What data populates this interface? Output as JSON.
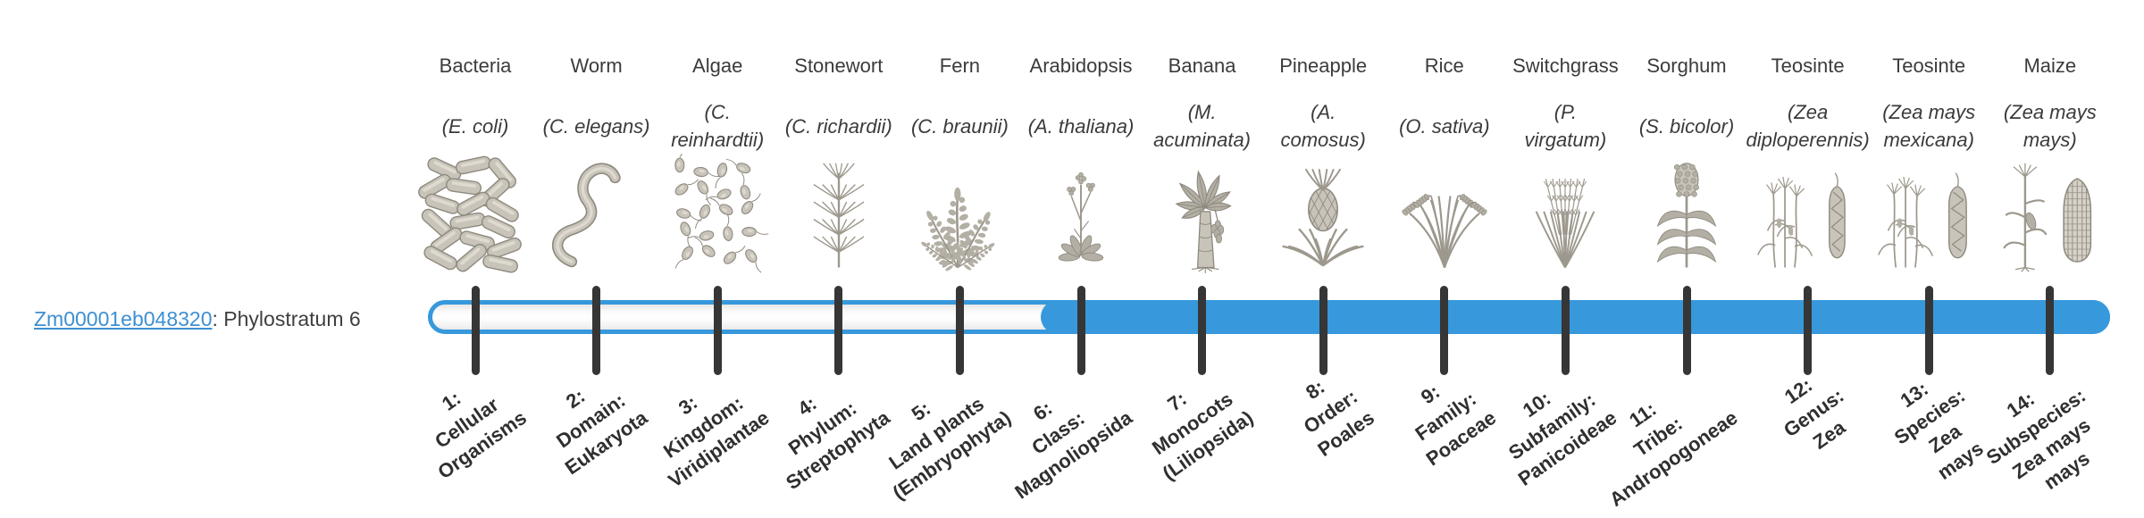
{
  "gene": {
    "id": "Zm00001eb048320",
    "suffix": ": Phylostratum 6"
  },
  "timeline": {
    "filled_from_stratum": 6,
    "total_strata": 14,
    "colors": {
      "fill_blue": "#3798dc",
      "track_fill": "#ffffff",
      "tick": "#363636",
      "link_blue": "#3d8fd1",
      "text": "#3f3f3f"
    }
  },
  "chart_data": {
    "type": "bar",
    "orientation": "horizontal",
    "title": "Zm00001eb048320: Phylostratum 6",
    "x_tick_labels": [
      "1: Cellular Organisms",
      "2: Domain: Eukaryota",
      "3: Kingdom: Viridiplantae",
      "4: Phylum: Streptophyta",
      "5: Land plants (Embryophyta)",
      "6: Class: Magnoliopsida",
      "7: Monocots (Liliopsida)",
      "8: Order: Poales",
      "9: Family: Poaceae",
      "10: Subfamily: Panicoideae",
      "11: Tribe: Andropogoneae",
      "12: Genus: Zea",
      "13: Species: Zea mays",
      "14: Subspecies: Zea mays mays"
    ],
    "top_labels": [
      "Bacteria (E. coli)",
      "Worm (C. elegans)",
      "Algae (C. reinhardtii)",
      "Stonewort (C. richardii)",
      "Fern (C. braunii)",
      "Arabidopsis (A. thaliana)",
      "Banana (M. acuminata)",
      "Pineapple (A. comosus)",
      "Rice (O. sativa)",
      "Switchgrass (P. virgatum)",
      "Sorghum (S. bicolor)",
      "Teosinte (Zea diploperennis)",
      "Teosinte (Zea mays mexicana)",
      "Maize (Zea mays mays)"
    ],
    "bar_unfilled_range_strata": [
      1,
      5
    ],
    "bar_filled_range_strata": [
      6,
      14
    ]
  },
  "strata": [
    {
      "index": 1,
      "common_name": "Bacteria",
      "sci_lines": [
        "(E. coli)"
      ],
      "axis_lines": [
        "1:",
        "Cellular",
        "Organisms"
      ],
      "icon": "bacteria"
    },
    {
      "index": 2,
      "common_name": "Worm",
      "sci_lines": [
        "(C. elegans)"
      ],
      "axis_lines": [
        "2:",
        "Domain:",
        "Eukaryota"
      ],
      "icon": "worm"
    },
    {
      "index": 3,
      "common_name": "Algae",
      "sci_lines": [
        "(C.",
        "reinhardtii)"
      ],
      "axis_lines": [
        "3:",
        "Kingdom:",
        "Viridiplantae"
      ],
      "icon": "algae"
    },
    {
      "index": 4,
      "common_name": "Stonewort",
      "sci_lines": [
        "(C. richardii)"
      ],
      "axis_lines": [
        "4:",
        "Phylum:",
        "Streptophyta"
      ],
      "icon": "stonewort"
    },
    {
      "index": 5,
      "common_name": "Fern",
      "sci_lines": [
        "(C. braunii)"
      ],
      "axis_lines": [
        "5:",
        "Land plants",
        "(Embryophyta)"
      ],
      "icon": "fern"
    },
    {
      "index": 6,
      "common_name": "Arabidopsis",
      "sci_lines": [
        "(A. thaliana)"
      ],
      "axis_lines": [
        "6:",
        "Class:",
        "Magnoliopsida"
      ],
      "icon": "arabidopsis"
    },
    {
      "index": 7,
      "common_name": "Banana",
      "sci_lines": [
        "(M.",
        "acuminata)"
      ],
      "axis_lines": [
        "7:",
        "Monocots",
        "(Liliopsida)"
      ],
      "icon": "banana"
    },
    {
      "index": 8,
      "common_name": "Pineapple",
      "sci_lines": [
        "(A.",
        "comosus)"
      ],
      "axis_lines": [
        "8:",
        "Order:",
        "Poales"
      ],
      "icon": "pineapple"
    },
    {
      "index": 9,
      "common_name": "Rice",
      "sci_lines": [
        "(O. sativa)"
      ],
      "axis_lines": [
        "9:",
        "Family:",
        "Poaceae"
      ],
      "icon": "rice"
    },
    {
      "index": 10,
      "common_name": "Switchgrass",
      "sci_lines": [
        "(P.",
        "virgatum)"
      ],
      "axis_lines": [
        "10:",
        "Subfamily:",
        "Panicoideae"
      ],
      "icon": "switchgrass"
    },
    {
      "index": 11,
      "common_name": "Sorghum",
      "sci_lines": [
        "(S. bicolor)"
      ],
      "axis_lines": [
        "11:",
        "Tribe:",
        "Andropogoneae"
      ],
      "icon": "sorghum"
    },
    {
      "index": 12,
      "common_name": "Teosinte",
      "sci_lines": [
        "(Zea",
        "diploperennis)"
      ],
      "axis_lines": [
        "12:",
        "Genus:",
        "Zea"
      ],
      "icon": "teosinte-diploperennis"
    },
    {
      "index": 13,
      "common_name": "Teosinte",
      "sci_lines": [
        "(Zea mays",
        "mexicana)"
      ],
      "axis_lines": [
        "13:",
        "Species:",
        "Zea",
        "mays"
      ],
      "icon": "teosinte-mexicana"
    },
    {
      "index": 14,
      "common_name": "Maize",
      "sci_lines": [
        "(Zea mays",
        "mays)"
      ],
      "axis_lines": [
        "14:",
        "Subspecies:",
        "Zea mays",
        "mays"
      ],
      "icon": "maize"
    }
  ]
}
